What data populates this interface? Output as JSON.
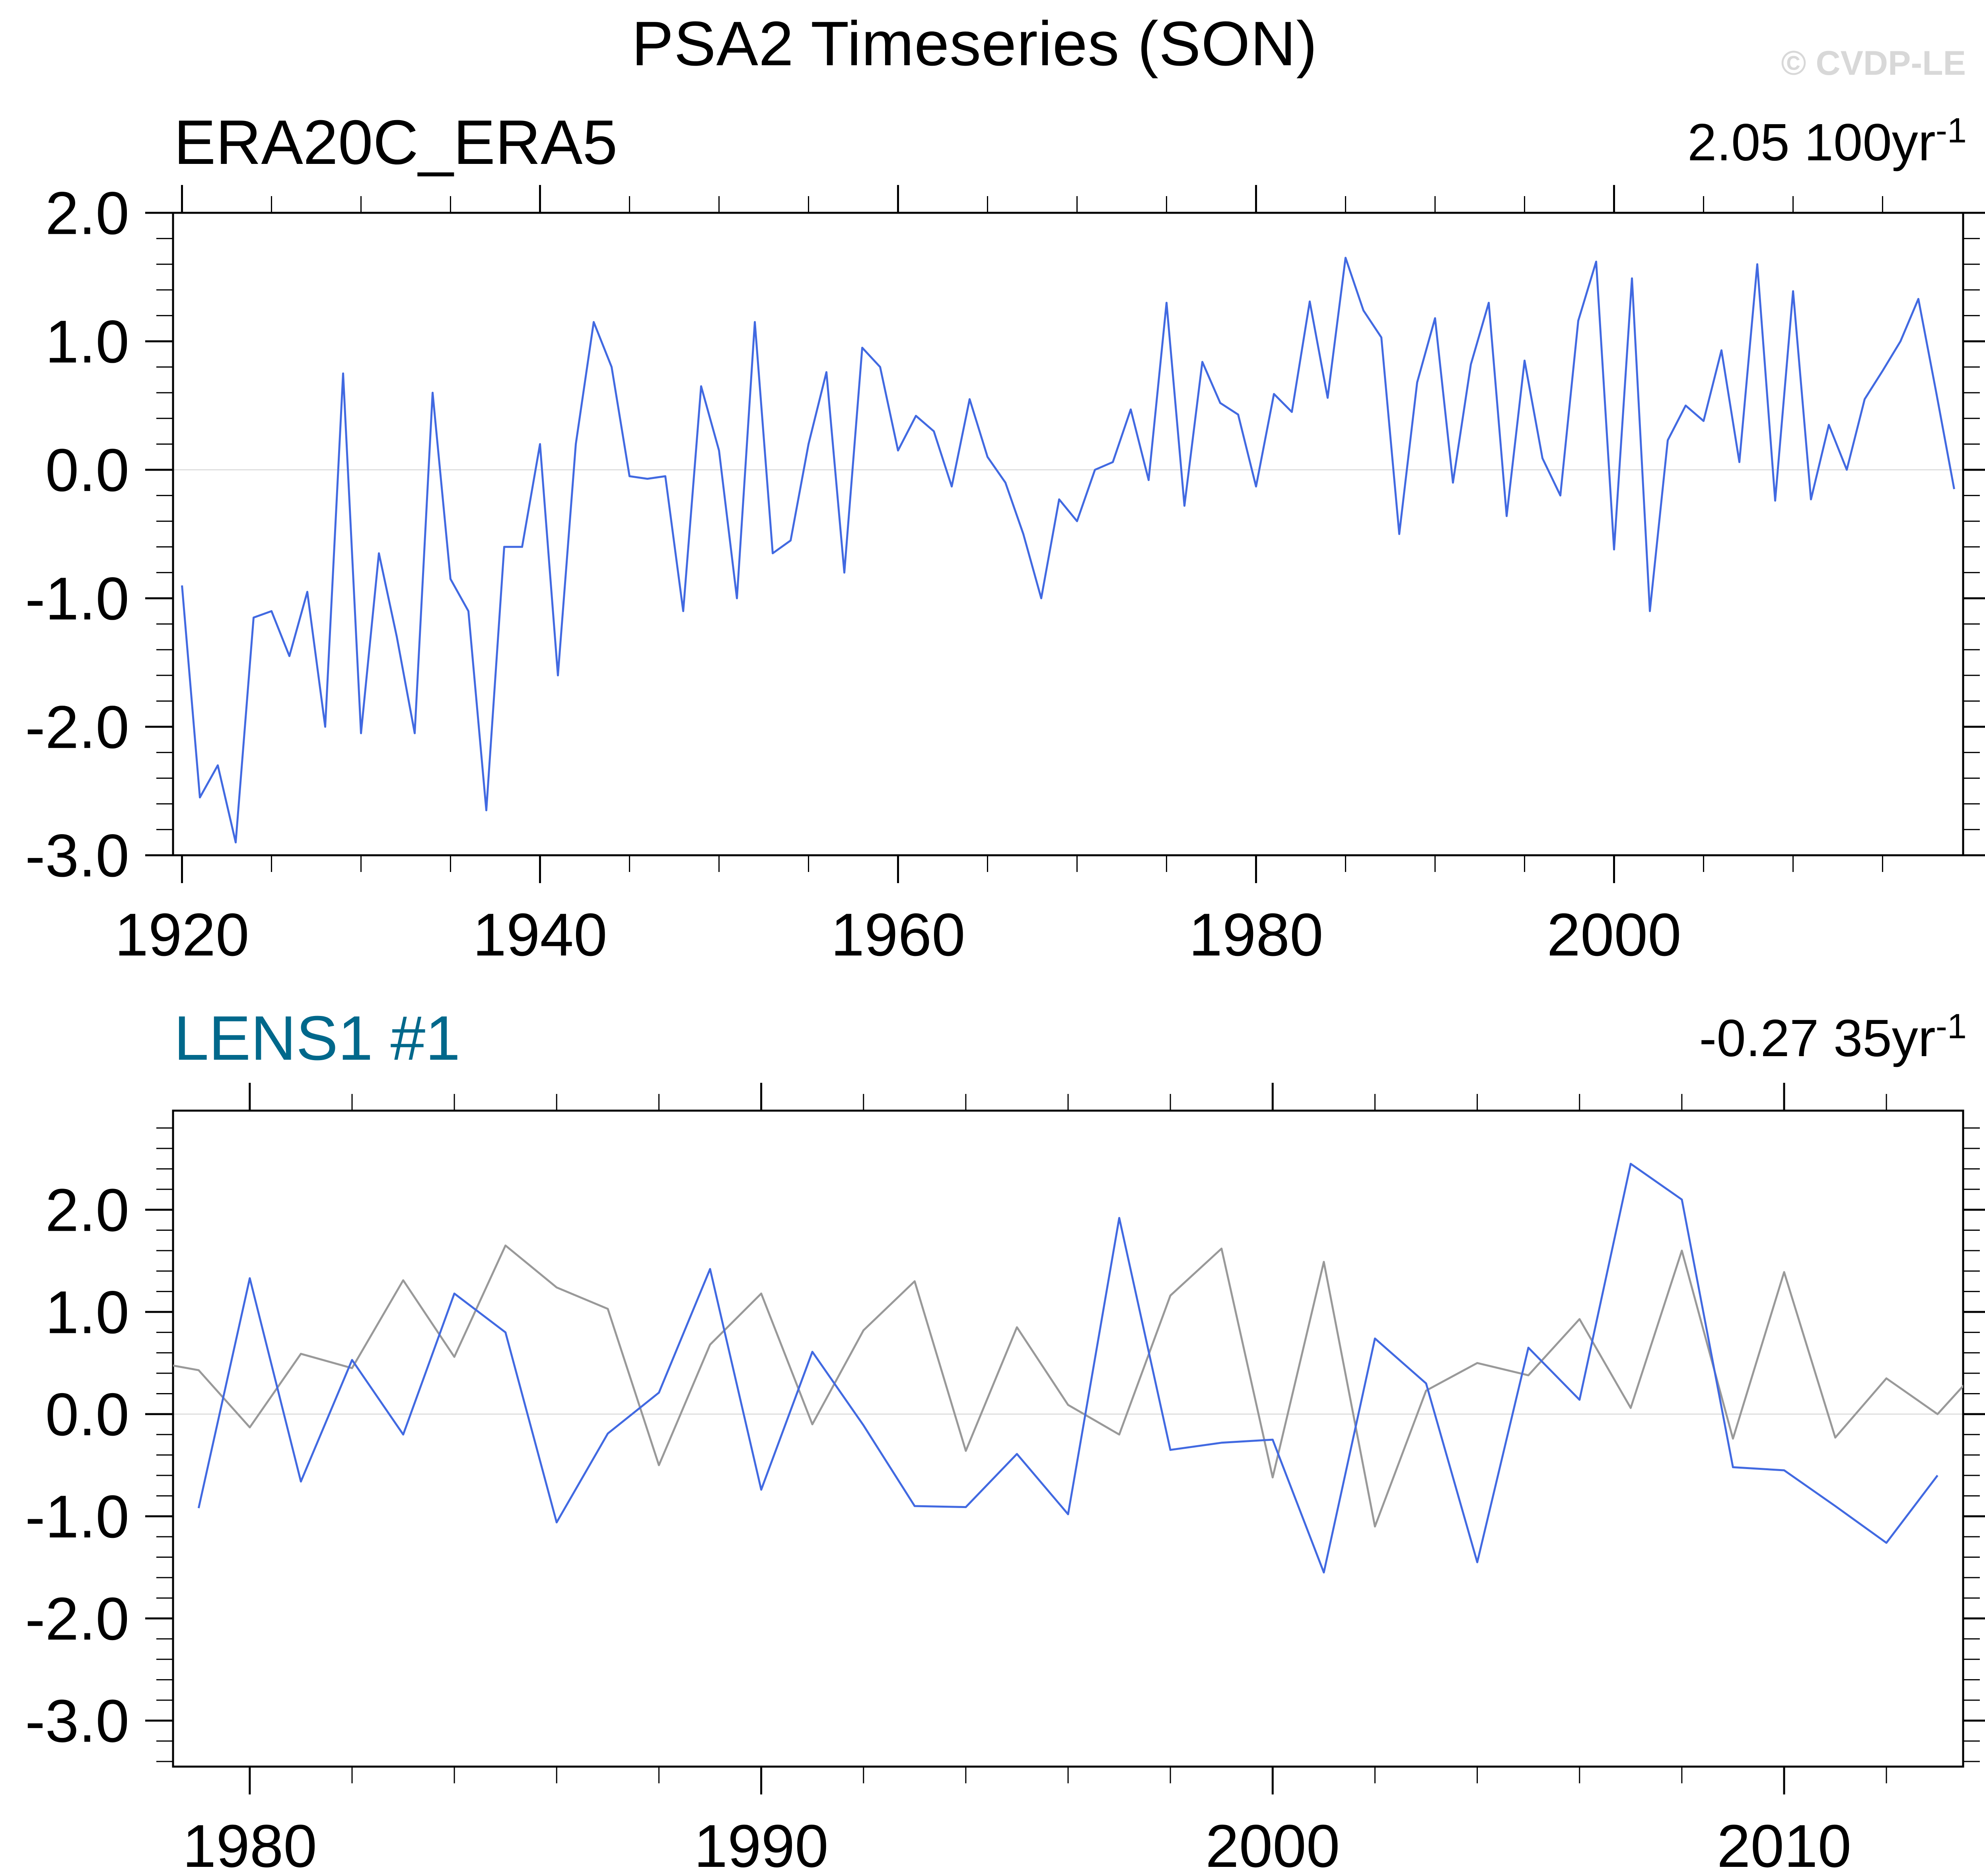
{
  "title": "PSA2 Timeseries (SON)",
  "watermark": "© CVDP-LE",
  "colors": {
    "model_line": "#4169e1",
    "obs_overlay_line": "#999999",
    "panel1_label": "#000000",
    "panel2_label": "#00688b",
    "watermark": "#d8d8d8",
    "zero_gridline": "#d9d9d9",
    "axis": "#000000"
  },
  "chart_data": [
    {
      "type": "line",
      "label": "ERA20C_ERA5",
      "label_color": "#000000",
      "trend": {
        "value": "2.05",
        "unit": "100yr",
        "exponent": "-1"
      },
      "xlim": [
        1919.5,
        2019.5
      ],
      "ylim": [
        -3.0,
        2.0
      ],
      "yticks": [
        2.0,
        1.0,
        0.0,
        -1.0,
        -2.0,
        -3.0
      ],
      "ytick_labels": [
        "2.0",
        "1.0",
        "0.0",
        "-1.0",
        "-2.0",
        "-3.0"
      ],
      "y_minor_step": 0.2,
      "xticks": [
        1920,
        1940,
        1960,
        1980,
        2000
      ],
      "xtick_labels": [
        "1920",
        "1940",
        "1960",
        "1980",
        "2000"
      ],
      "x_minor_step": 5,
      "gridline_y": 0,
      "grid": "zero-line-only",
      "legend_position": "none",
      "series": [
        {
          "name": "ERA20C_ERA5",
          "color": "#4169e1",
          "x_start": 1920,
          "values": [
            -0.9,
            -2.55,
            -2.3,
            -2.9,
            -1.15,
            -1.1,
            -1.45,
            -0.95,
            -2.0,
            0.75,
            -2.05,
            -0.65,
            -1.3,
            -2.05,
            0.6,
            -0.85,
            -1.1,
            -2.65,
            -0.6,
            -0.6,
            0.2,
            -1.6,
            0.2,
            1.15,
            0.8,
            -0.05,
            -0.07,
            -0.05,
            -1.1,
            0.65,
            0.15,
            -1.0,
            1.15,
            -0.65,
            -0.55,
            0.2,
            0.76,
            -0.8,
            0.95,
            0.8,
            0.15,
            0.42,
            0.3,
            -0.13,
            0.55,
            0.1,
            -0.1,
            -0.5,
            -1.0,
            -0.23,
            -0.4,
            0.0,
            0.06,
            0.47,
            -0.08,
            1.3,
            -0.28,
            0.84,
            0.52,
            0.43,
            -0.13,
            0.59,
            0.45,
            1.31,
            0.56,
            1.65,
            1.24,
            1.03,
            -0.5,
            0.68,
            1.18,
            -0.1,
            0.82,
            1.3,
            -0.36,
            0.85,
            0.09,
            -0.2,
            1.16,
            1.62,
            -0.62,
            1.49,
            -1.1,
            0.23,
            0.5,
            0.38,
            0.93,
            0.06,
            1.6,
            -0.24,
            1.39,
            -0.23,
            0.35,
            0.0,
            0.55,
            0.77,
            1.0,
            1.33,
            0.6,
            -0.15
          ]
        }
      ]
    },
    {
      "type": "line",
      "label": "LENS1 #1",
      "label_color": "#00688b",
      "trend": {
        "value": "-0.27",
        "unit": "35yr",
        "exponent": "-1"
      },
      "xlim": [
        1978.5,
        2013.5
      ],
      "ylim": [
        -3.45,
        2.97
      ],
      "yticks": [
        2.0,
        1.0,
        0.0,
        -1.0,
        -2.0,
        -3.0
      ],
      "ytick_labels": [
        "2.0",
        "1.0",
        "0.0",
        "-1.0",
        "-2.0",
        "-3.0"
      ],
      "y_minor_step": 0.2,
      "xticks": [
        1980,
        1990,
        2000,
        2010
      ],
      "xtick_labels": [
        "1980",
        "1990",
        "2000",
        "2010"
      ],
      "x_minor_step": 2,
      "gridline_y": 0,
      "grid": "zero-line-only",
      "legend_position": "none",
      "series": [
        {
          "name": "ERA20C_ERA5 obs overlay",
          "color": "#999999",
          "x_start": 1978,
          "values": [
            0.52,
            0.43,
            -0.13,
            0.59,
            0.45,
            1.31,
            0.56,
            1.65,
            1.24,
            1.03,
            -0.5,
            0.68,
            1.18,
            -0.1,
            0.82,
            1.3,
            -0.36,
            0.85,
            0.09,
            -0.2,
            1.16,
            1.62,
            -0.62,
            1.49,
            -1.1,
            0.23,
            0.5,
            0.38,
            0.93,
            0.06,
            1.6,
            -0.24,
            1.39,
            -0.23,
            0.35,
            0.0,
            0.55
          ]
        },
        {
          "name": "LENS1 #1",
          "color": "#4169e1",
          "x_start": 1979,
          "values": [
            -0.92,
            1.33,
            -0.66,
            0.53,
            -0.2,
            1.18,
            0.8,
            -1.06,
            -0.19,
            0.21,
            1.42,
            -0.74,
            0.61,
            -0.11,
            -0.9,
            -0.91,
            -0.39,
            -0.98,
            1.92,
            -0.35,
            -0.28,
            -0.25,
            -1.55,
            0.74,
            0.3,
            -1.45,
            0.65,
            0.14,
            2.45,
            2.1,
            -0.52,
            -0.55,
            -0.9,
            -1.26,
            -0.6
          ]
        }
      ]
    }
  ]
}
